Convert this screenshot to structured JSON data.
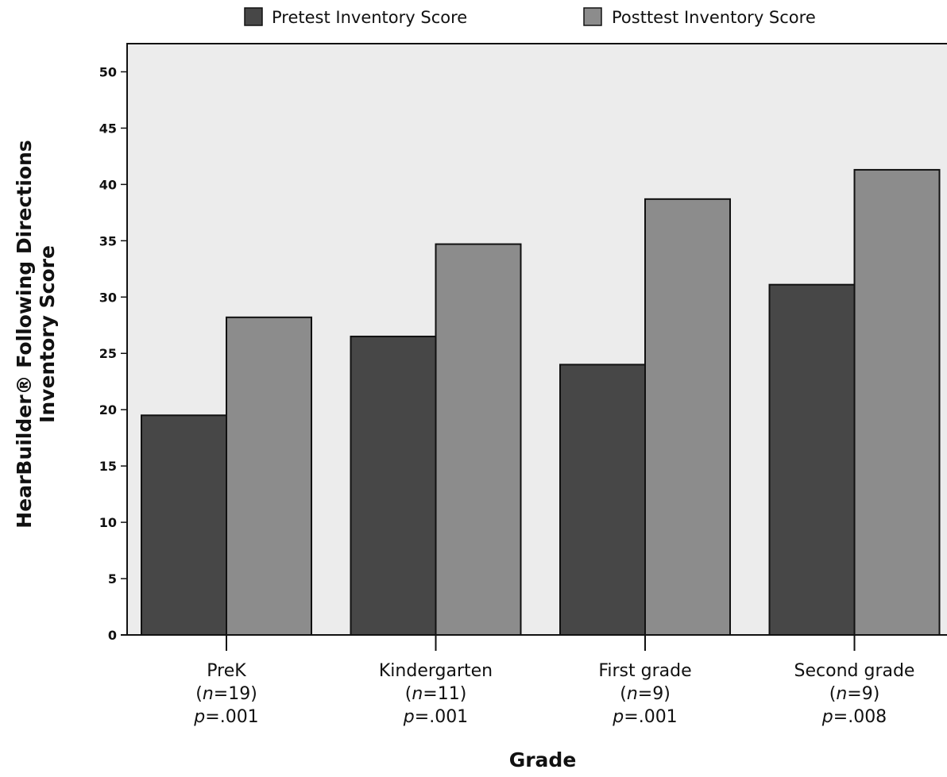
{
  "chart_data": {
    "type": "bar",
    "xlabel": "Grade",
    "ylabel_line1": "HearBuilder® Following Directions",
    "ylabel_line2": "Inventory Score",
    "ylim": [
      0,
      52.5
    ],
    "yticks": [
      0,
      5,
      10,
      15,
      20,
      25,
      30,
      35,
      40,
      45,
      50
    ],
    "grid": false,
    "legend_position": "top",
    "categories": [
      {
        "name": "PreK",
        "n_prefix": "(",
        "n_italic": "n",
        "n_value": "=19)",
        "p_italic": "p",
        "p_value": "=.001"
      },
      {
        "name": "Kindergarten",
        "n_prefix": "(",
        "n_italic": "n",
        "n_value": "=11)",
        "p_italic": "p",
        "p_value": "=.001"
      },
      {
        "name": "First grade",
        "n_prefix": "(",
        "n_italic": "n",
        "n_value": "=9)",
        "p_italic": "p",
        "p_value": "=.001"
      },
      {
        "name": "Second grade",
        "n_prefix": "(",
        "n_italic": "n",
        "n_value": "=9)",
        "p_italic": "p",
        "p_value": "=.008"
      }
    ],
    "series": [
      {
        "name": "Pretest Inventory Score",
        "color": "#474747",
        "values": [
          19.5,
          26.5,
          24.0,
          31.1
        ]
      },
      {
        "name": "Posttest Inventory Score",
        "color": "#8c8c8c",
        "values": [
          28.2,
          34.7,
          38.7,
          41.3
        ]
      }
    ],
    "plot_background": "#ececec"
  }
}
